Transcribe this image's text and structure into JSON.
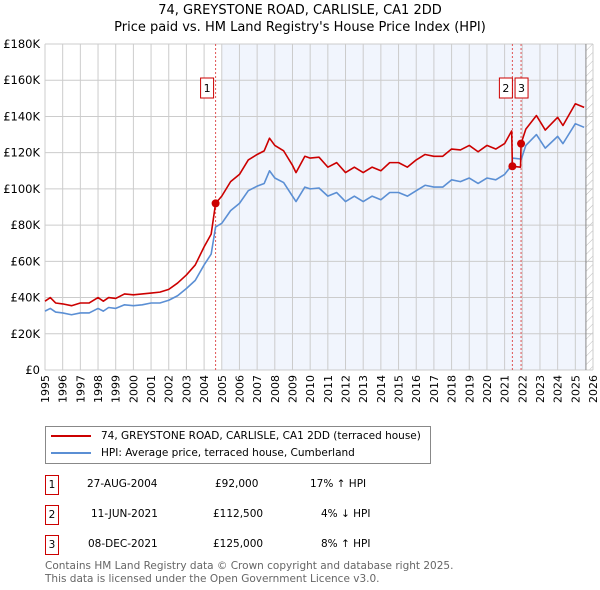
{
  "chart_data": {
    "type": "line",
    "title": "74, GREYSTONE ROAD, CARLISLE, CA1 2DD",
    "subtitle": "Price paid vs. HM Land Registry's House Price Index (HPI)",
    "xlim": [
      1995,
      2026
    ],
    "ylim": [
      0,
      180000
    ],
    "x_ticks": [
      "1995",
      "1996",
      "1997",
      "1998",
      "1999",
      "2000",
      "2001",
      "2002",
      "2003",
      "2004",
      "2005",
      "2006",
      "2007",
      "2008",
      "2009",
      "2010",
      "2011",
      "2012",
      "2013",
      "2014",
      "2015",
      "2016",
      "2017",
      "2018",
      "2019",
      "2020",
      "2021",
      "2022",
      "2023",
      "2024",
      "2025",
      "2026"
    ],
    "y_ticks": [
      {
        "v": 0,
        "l": "£0"
      },
      {
        "v": 20000,
        "l": "£20K"
      },
      {
        "v": 40000,
        "l": "£40K"
      },
      {
        "v": 60000,
        "l": "£60K"
      },
      {
        "v": 80000,
        "l": "£80K"
      },
      {
        "v": 100000,
        "l": "£100K"
      },
      {
        "v": 120000,
        "l": "£120K"
      },
      {
        "v": 140000,
        "l": "£140K"
      },
      {
        "v": 160000,
        "l": "£160K"
      },
      {
        "v": 180000,
        "l": "£180K"
      }
    ],
    "grid": true,
    "shaded_range": [
      2005.0,
      2025.6
    ],
    "hatched_from": 2025.6,
    "series": [
      {
        "name": "74, GREYSTONE ROAD, CARLISLE, CA1 2DD (terraced house)",
        "color": "#cc0000",
        "x": [
          1995,
          1995.3,
          1995.6,
          1996,
          1996.5,
          1997,
          1997.5,
          1998,
          1998.3,
          1998.6,
          1999,
          1999.5,
          2000,
          2000.5,
          2001,
          2001.5,
          2002,
          2002.5,
          2003,
          2003.5,
          2004,
          2004.4,
          2004.65,
          2005,
          2005.5,
          2006,
          2006.5,
          2007,
          2007.4,
          2007.7,
          2008,
          2008.5,
          2009,
          2009.2,
          2009.7,
          2010,
          2010.5,
          2011,
          2011.5,
          2012,
          2012.5,
          2013,
          2013.5,
          2014,
          2014.5,
          2015,
          2015.5,
          2016,
          2016.5,
          2017,
          2017.5,
          2018,
          2018.5,
          2019,
          2019.5,
          2020,
          2020.5,
          2021,
          2021.4,
          2021.44,
          2021.9,
          2021.93,
          2022.2,
          2022.8,
          2023.3,
          2024,
          2024.3,
          2025,
          2025.5
        ],
        "y": [
          38000,
          40000,
          37000,
          36500,
          35500,
          37000,
          37000,
          40000,
          38000,
          40000,
          39500,
          42000,
          41500,
          42000,
          42500,
          43000,
          44500,
          48000,
          52500,
          58000,
          68000,
          75000,
          92000,
          96000,
          104000,
          108000,
          116000,
          119000,
          121000,
          128000,
          124000,
          121000,
          113000,
          109000,
          118000,
          117000,
          117500,
          112000,
          114500,
          109000,
          112000,
          109000,
          112000,
          110000,
          114500,
          114500,
          112000,
          116000,
          119000,
          118000,
          118000,
          122000,
          121500,
          124000,
          120500,
          124000,
          122000,
          125000,
          132000,
          112500,
          112000,
          125000,
          133000,
          140500,
          132500,
          139500,
          135000,
          147000,
          145000
        ]
      },
      {
        "name": "HPI: Average price, terraced house, Cumberland",
        "color": "#5b8fd4",
        "x": [
          1995,
          1995.3,
          1995.6,
          1996,
          1996.5,
          1997,
          1997.5,
          1998,
          1998.3,
          1998.6,
          1999,
          1999.5,
          2000,
          2000.5,
          2001,
          2001.5,
          2002,
          2002.5,
          2003,
          2003.5,
          2004,
          2004.4,
          2004.65,
          2005,
          2005.5,
          2006,
          2006.5,
          2007,
          2007.4,
          2007.7,
          2008,
          2008.5,
          2009,
          2009.2,
          2009.7,
          2010,
          2010.5,
          2011,
          2011.5,
          2012,
          2012.5,
          2013,
          2013.5,
          2014,
          2014.5,
          2015,
          2015.5,
          2016,
          2016.5,
          2017,
          2017.5,
          2018,
          2018.5,
          2019,
          2019.5,
          2020,
          2020.5,
          2021,
          2021.4,
          2021.44,
          2021.9,
          2021.93,
          2022.2,
          2022.8,
          2023.3,
          2024,
          2024.3,
          2025,
          2025.5
        ],
        "y": [
          32500,
          34000,
          32000,
          31500,
          30500,
          31500,
          31500,
          34000,
          32500,
          34500,
          34000,
          36000,
          35500,
          36000,
          37000,
          37000,
          38500,
          41000,
          45000,
          49500,
          58000,
          64000,
          79000,
          81000,
          88000,
          92000,
          99000,
          101500,
          103000,
          110000,
          106000,
          103500,
          96000,
          93000,
          101000,
          100000,
          100500,
          96000,
          98000,
          93000,
          96000,
          93000,
          96000,
          94000,
          98000,
          98000,
          96000,
          99000,
          102000,
          101000,
          101000,
          105000,
          104000,
          106000,
          103000,
          106000,
          105000,
          108000,
          113000,
          117000,
          116500,
          116000,
          124000,
          130000,
          122500,
          129000,
          125000,
          136000,
          134000
        ]
      }
    ],
    "sales": [
      {
        "label": "1",
        "x": 2004.65,
        "y": 92000,
        "date": "27-AUG-2004",
        "price": "£92,000",
        "hpi": "17% ↑ HPI"
      },
      {
        "label": "2",
        "x": 2021.44,
        "y": 112500,
        "date": "11-JUN-2021",
        "price": "£112,500",
        "hpi": "4% ↓ HPI"
      },
      {
        "label": "3",
        "x": 2021.93,
        "y": 125000,
        "date": "08-DEC-2021",
        "price": "£125,000",
        "hpi": "8% ↑ HPI"
      }
    ]
  },
  "footer": {
    "line1": "Contains HM Land Registry data © Crown copyright and database right 2025.",
    "line2": "This data is licensed under the Open Government Licence v3.0."
  }
}
